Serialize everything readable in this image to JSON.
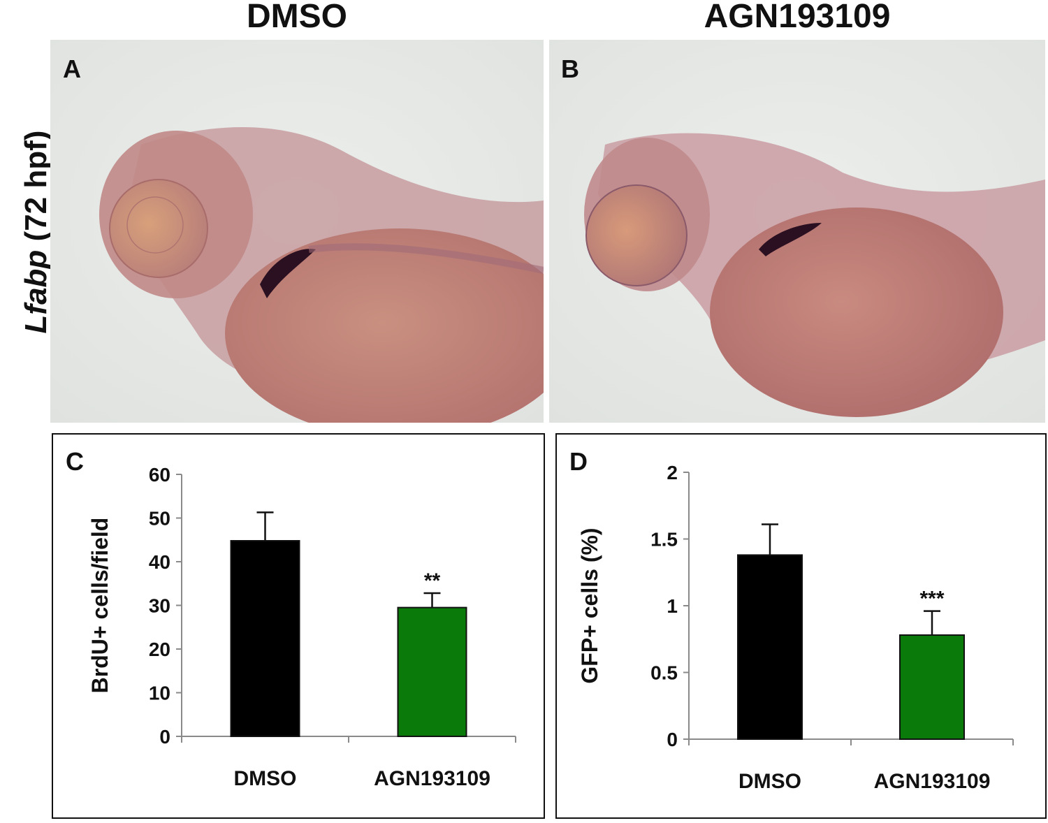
{
  "columns": {
    "left_title": "DMSO",
    "right_title": "AGN193109"
  },
  "row_label": {
    "gene": "Lfabp",
    "stage": "(72 hpf)"
  },
  "panels": {
    "A": "A",
    "B": "B",
    "C": "C",
    "D": "D"
  },
  "colors": {
    "dmso_bar": "#000000",
    "agn_bar": "#0a7a0a",
    "background_photo": "#e6e8e6",
    "embryo_tissue": "#b77a78",
    "liver_stain": "#2a1020"
  },
  "chart_data": [
    {
      "type": "bar",
      "panel": "C",
      "categories": [
        "DMSO",
        "AGN193109"
      ],
      "values": [
        44.8,
        29.5
      ],
      "errors": [
        6.5,
        3.3
      ],
      "significance": [
        "",
        "**"
      ],
      "ylabel": "BrdU+ cells/field",
      "ylim": [
        0,
        60
      ],
      "yticks": [
        "0",
        "10",
        "20",
        "30",
        "40",
        "50",
        "60"
      ],
      "ytick_values": [
        0,
        10,
        20,
        30,
        40,
        50,
        60
      ]
    },
    {
      "type": "bar",
      "panel": "D",
      "categories": [
        "DMSO",
        "AGN193109"
      ],
      "values": [
        1.38,
        0.78
      ],
      "errors": [
        0.23,
        0.18
      ],
      "significance": [
        "",
        "***"
      ],
      "ylabel": "GFP+ cells (%)",
      "ylim": [
        0,
        2
      ],
      "yticks": [
        "0",
        "0.5",
        "1",
        "1.5",
        "2"
      ],
      "ytick_values": [
        0,
        0.5,
        1,
        1.5,
        2
      ]
    }
  ]
}
